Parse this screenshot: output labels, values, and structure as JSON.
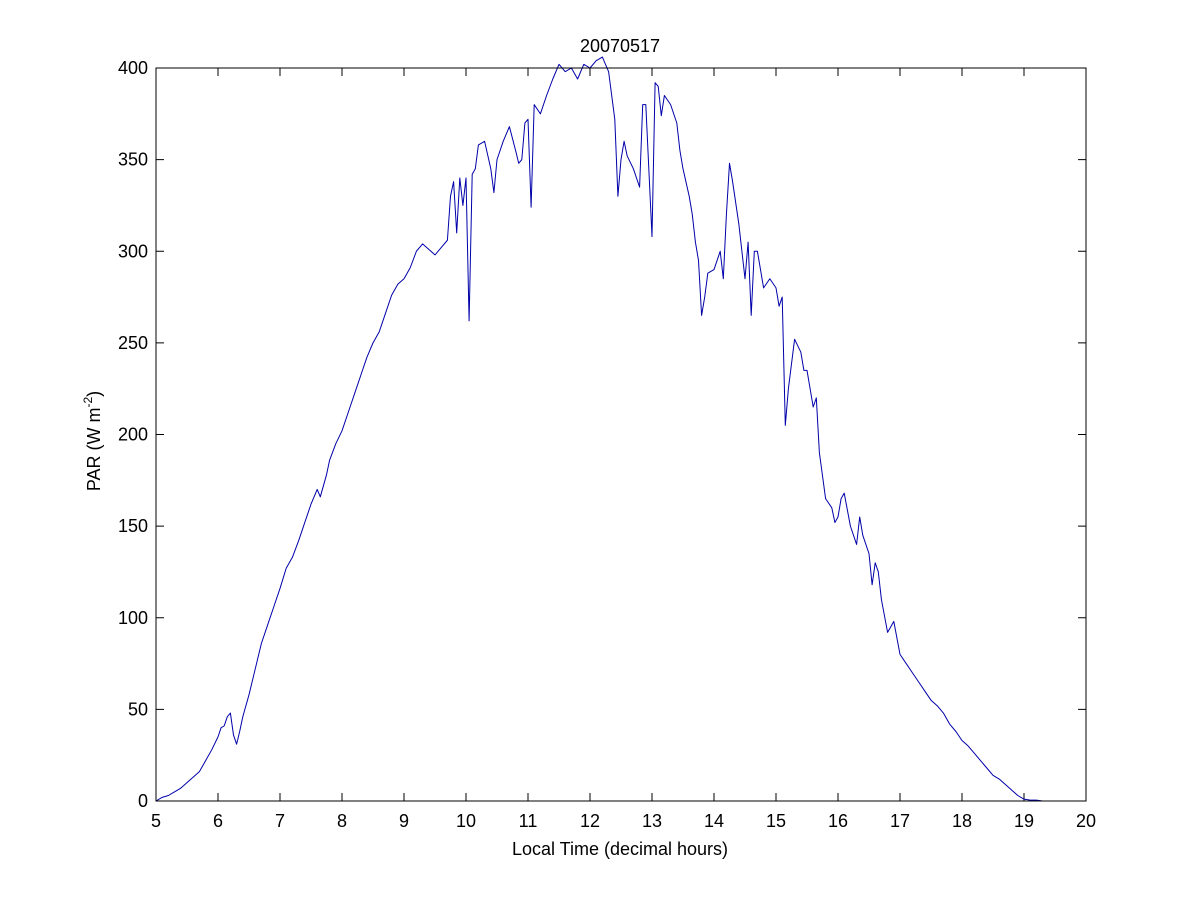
{
  "chart_data": {
    "type": "line",
    "title": "20070517",
    "xlabel": "Local Time (decimal hours)",
    "ylabel": {
      "prefix": "PAR (W m",
      "superscript": "-2",
      "suffix": ")"
    },
    "xlim": [
      5,
      20
    ],
    "ylim": [
      0,
      400
    ],
    "xticks": [
      5,
      6,
      7,
      8,
      9,
      10,
      11,
      12,
      13,
      14,
      15,
      16,
      17,
      18,
      19,
      20
    ],
    "yticks": [
      0,
      50,
      100,
      150,
      200,
      250,
      300,
      350,
      400
    ],
    "grid": false,
    "legend": "none",
    "series": [
      {
        "color": "#0000aa",
        "x": [
          5.0,
          5.1,
          5.2,
          5.3,
          5.4,
          5.5,
          5.6,
          5.7,
          5.8,
          5.9,
          6.0,
          6.05,
          6.1,
          6.15,
          6.2,
          6.25,
          6.3,
          6.35,
          6.4,
          6.5,
          6.6,
          6.7,
          6.8,
          6.9,
          7.0,
          7.1,
          7.2,
          7.3,
          7.4,
          7.5,
          7.6,
          7.65,
          7.7,
          7.75,
          7.8,
          7.9,
          8.0,
          8.1,
          8.2,
          8.3,
          8.4,
          8.5,
          8.6,
          8.7,
          8.8,
          8.9,
          9.0,
          9.1,
          9.2,
          9.3,
          9.4,
          9.5,
          9.6,
          9.7,
          9.75,
          9.8,
          9.85,
          9.9,
          9.95,
          10.0,
          10.05,
          10.1,
          10.15,
          10.2,
          10.3,
          10.4,
          10.45,
          10.5,
          10.6,
          10.7,
          10.8,
          10.85,
          10.9,
          10.95,
          11.0,
          11.05,
          11.1,
          11.2,
          11.3,
          11.4,
          11.5,
          11.6,
          11.7,
          11.8,
          11.9,
          12.0,
          12.1,
          12.2,
          12.3,
          12.35,
          12.4,
          12.45,
          12.5,
          12.55,
          12.6,
          12.7,
          12.8,
          12.85,
          12.9,
          13.0,
          13.05,
          13.1,
          13.15,
          13.2,
          13.3,
          13.4,
          13.45,
          13.5,
          13.6,
          13.65,
          13.7,
          13.75,
          13.8,
          13.85,
          13.9,
          14.0,
          14.1,
          14.15,
          14.2,
          14.25,
          14.3,
          14.4,
          14.45,
          14.5,
          14.55,
          14.6,
          14.65,
          14.7,
          14.8,
          14.9,
          15.0,
          15.05,
          15.1,
          15.15,
          15.2,
          15.3,
          15.4,
          15.45,
          15.5,
          15.55,
          15.6,
          15.65,
          15.7,
          15.8,
          15.9,
          15.95,
          16.0,
          16.05,
          16.1,
          16.2,
          16.3,
          16.35,
          16.4,
          16.5,
          16.55,
          16.6,
          16.65,
          16.7,
          16.8,
          16.9,
          17.0,
          17.1,
          17.2,
          17.3,
          17.4,
          17.5,
          17.6,
          17.7,
          17.8,
          17.9,
          18.0,
          18.1,
          18.2,
          18.3,
          18.4,
          18.5,
          18.6,
          18.7,
          18.8,
          18.9,
          19.0,
          19.1,
          19.2,
          19.3
        ],
        "y": [
          0,
          2,
          3,
          5,
          7,
          10,
          13,
          16,
          22,
          28,
          35,
          40,
          41,
          46,
          48,
          36,
          31,
          38,
          46,
          58,
          72,
          86,
          96,
          106,
          116,
          127,
          133,
          142,
          152,
          162,
          170,
          166,
          172,
          178,
          186,
          195,
          202,
          212,
          222,
          232,
          242,
          250,
          256,
          266,
          276,
          282,
          285,
          291,
          300,
          304,
          301,
          298,
          302,
          306,
          330,
          338,
          310,
          340,
          325,
          340,
          262,
          342,
          345,
          358,
          360,
          345,
          332,
          350,
          360,
          368,
          355,
          348,
          350,
          370,
          372,
          324,
          380,
          375,
          385,
          394,
          402,
          398,
          400,
          394,
          402,
          400,
          404,
          406,
          398,
          385,
          372,
          330,
          350,
          360,
          352,
          345,
          335,
          380,
          380,
          308,
          392,
          390,
          374,
          385,
          380,
          370,
          355,
          345,
          330,
          320,
          305,
          295,
          265,
          275,
          288,
          290,
          300,
          285,
          320,
          348,
          338,
          315,
          300,
          285,
          305,
          265,
          300,
          300,
          280,
          285,
          280,
          270,
          275,
          205,
          225,
          252,
          245,
          235,
          235,
          225,
          215,
          220,
          190,
          165,
          160,
          152,
          155,
          165,
          168,
          150,
          140,
          155,
          145,
          135,
          118,
          130,
          125,
          110,
          92,
          98,
          80,
          75,
          70,
          65,
          60,
          55,
          52,
          48,
          42,
          38,
          33,
          30,
          26,
          22,
          18,
          14,
          12,
          9,
          6,
          3,
          1,
          0.5,
          0.5,
          0
        ]
      }
    ]
  }
}
